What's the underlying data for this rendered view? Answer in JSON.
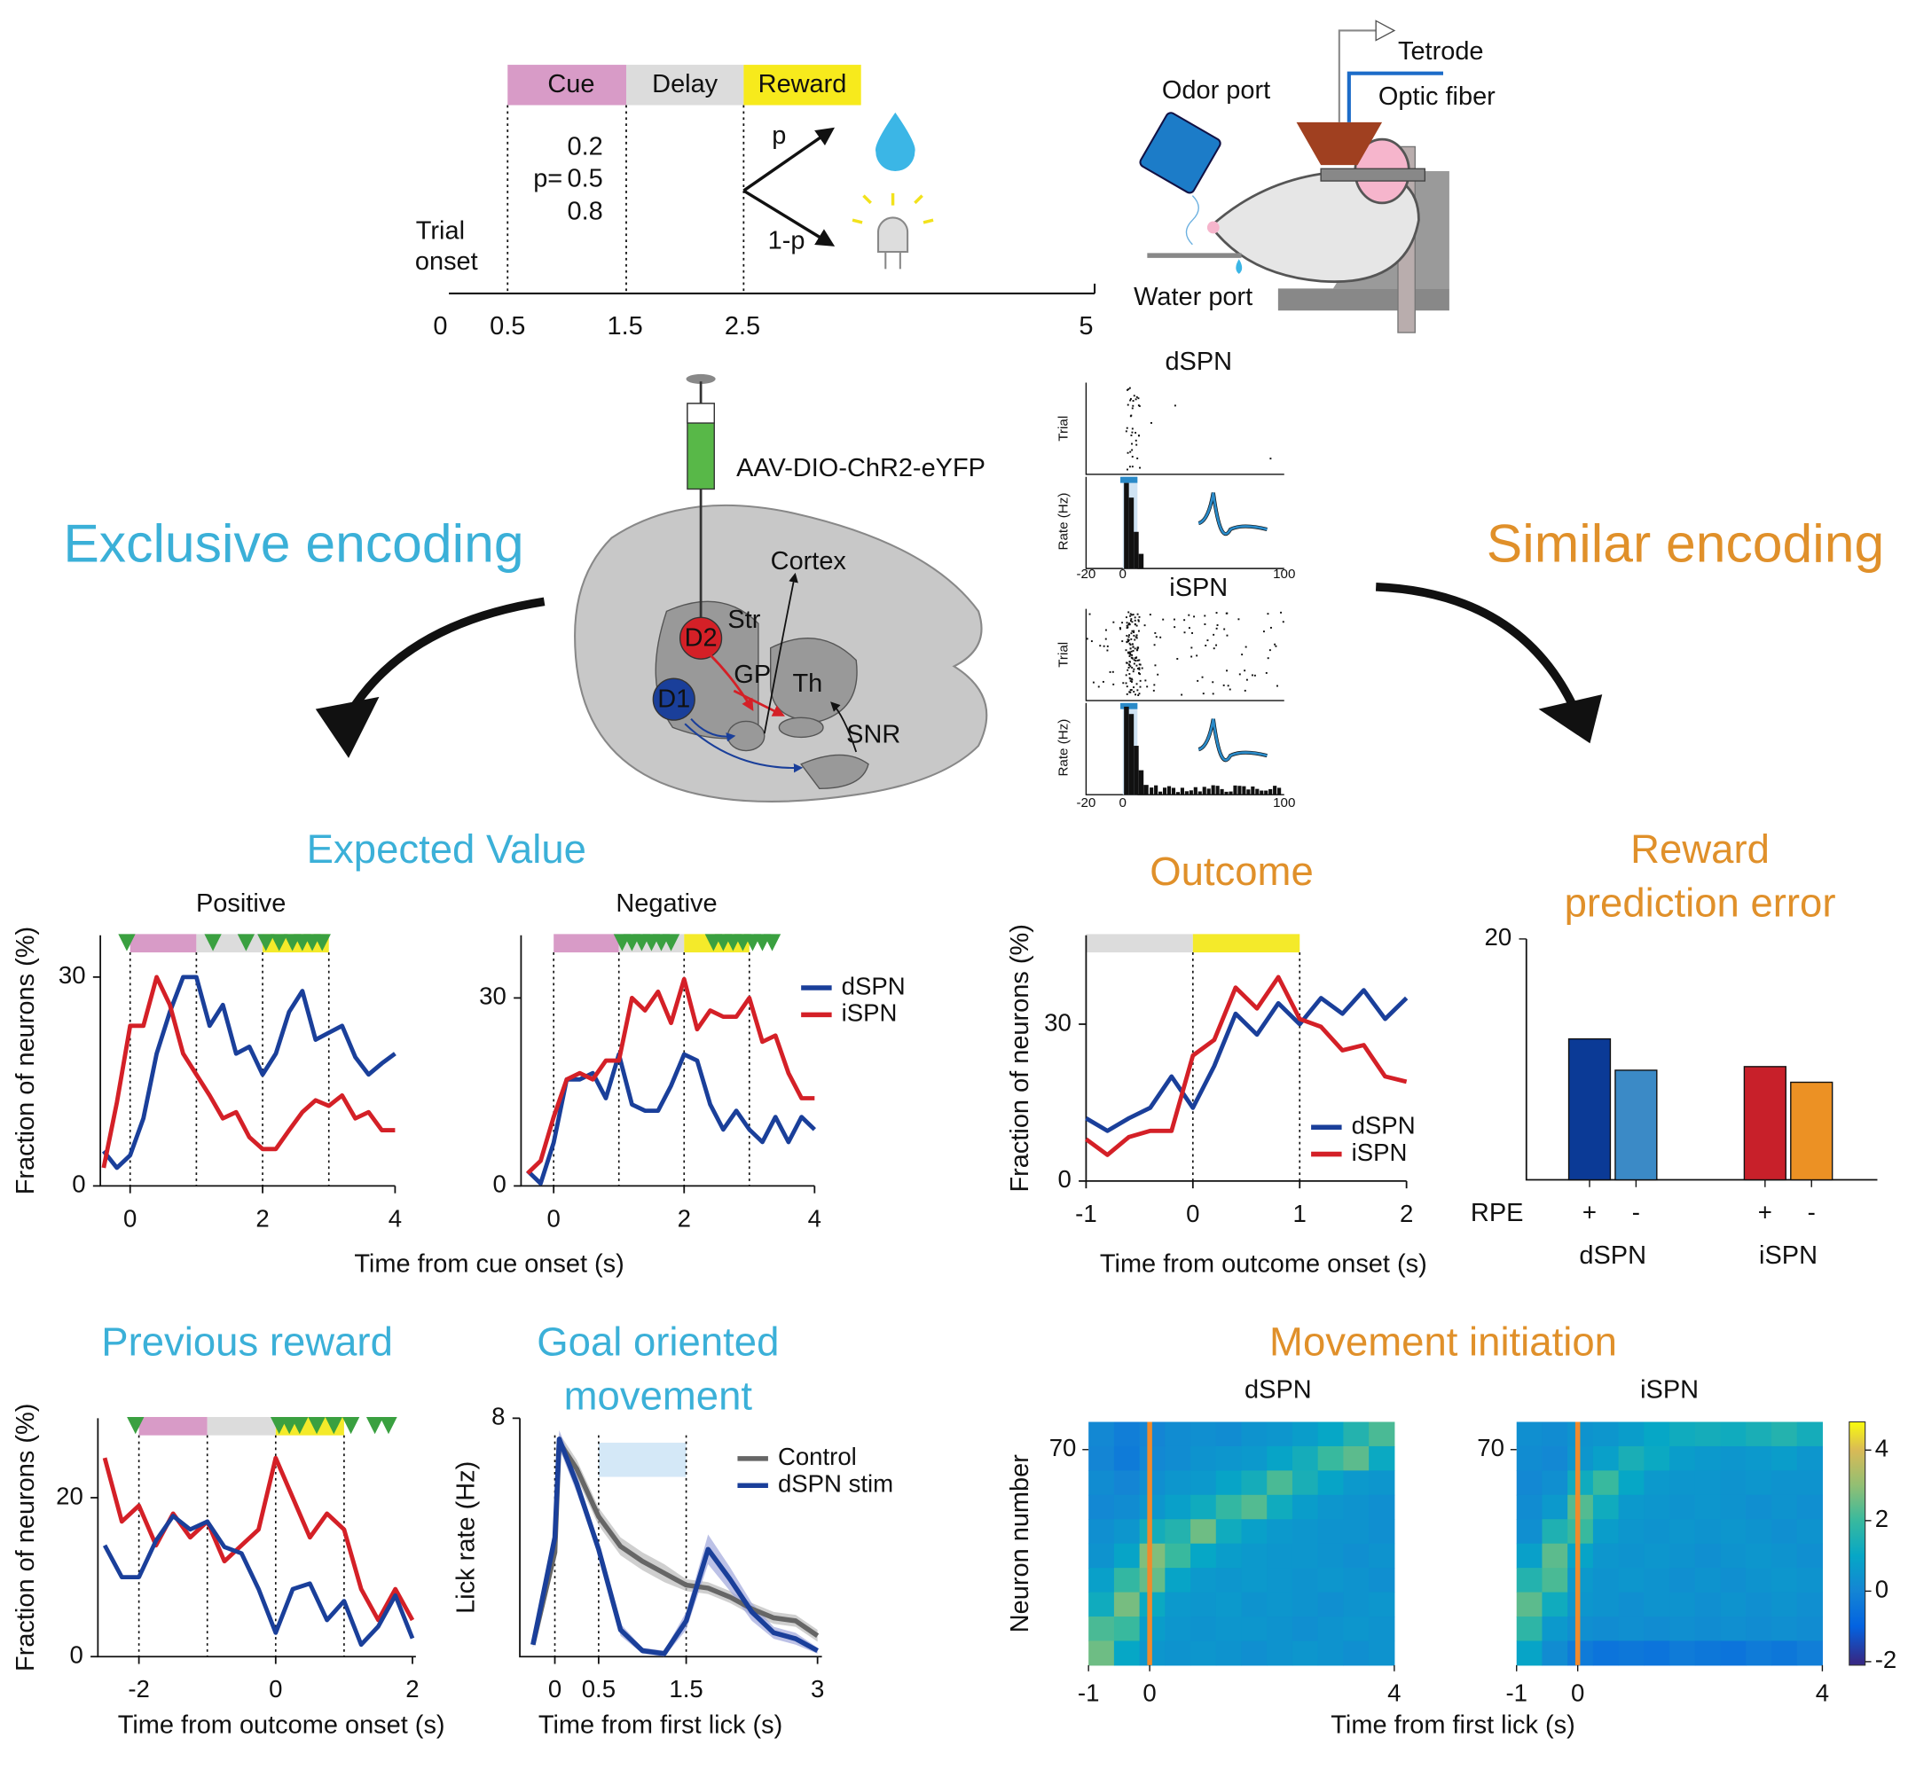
{
  "task": {
    "epochs": [
      "Cue",
      "Delay",
      "Reward"
    ],
    "probabilities_label": "p=",
    "probabilities": [
      0.2,
      0.5,
      0.8
    ],
    "start_label": [
      "Trial",
      "onset"
    ],
    "ticks": [
      0,
      0.5,
      1.5,
      2.5,
      5
    ],
    "branches": [
      "p",
      "1-p"
    ]
  },
  "rig": {
    "labels": [
      "Odor port",
      "Tetrode",
      "Optic fiber",
      "Water port"
    ]
  },
  "brain": {
    "virus": "AAV-DIO-ChR2-eYFP",
    "regions": [
      "Cortex",
      "Str",
      "D2",
      "GP",
      "Th",
      "D1",
      "SNR"
    ]
  },
  "units": [
    {
      "title": "dSPN",
      "y_labels": [
        "Trial",
        "Rate (Hz)"
      ],
      "x_ticks": [
        -20,
        0,
        100
      ]
    },
    {
      "title": "iSPN",
      "y_labels": [
        "Trial",
        "Rate (Hz)"
      ],
      "x_ticks": [
        -20,
        0,
        100
      ]
    }
  ],
  "themes": {
    "left": "Exclusive encoding",
    "right": "Similar encoding"
  },
  "panels": {
    "expected_value": {
      "title": "Expected Value",
      "xlabel": "Time from cue onset (s)"
    },
    "movement_initiation": {
      "title": "Movement initiation",
      "xlabel": "Time from first lick (s)"
    }
  },
  "chart_data": [
    {
      "type": "line",
      "title": "Positive",
      "ylabel": "Fraction of neurons (%)",
      "x": [
        -0.4,
        -0.2,
        0,
        0.2,
        0.4,
        0.6,
        0.8,
        1,
        1.2,
        1.4,
        1.6,
        1.8,
        2,
        2.2,
        2.4,
        2.6,
        2.8,
        3,
        3.2,
        3.4,
        3.6,
        3.8,
        4
      ],
      "series": [
        {
          "color": "#1a3f9a",
          "values": [
            5,
            2.6,
            4.4,
            9.7,
            19,
            25,
            30,
            30,
            23,
            26,
            19,
            20,
            16,
            19,
            25,
            28,
            21,
            22,
            23,
            18.5,
            16,
            17.6,
            19
          ]
        },
        {
          "color": "#d42027",
          "values": [
            2.6,
            12,
            23,
            23,
            30,
            26,
            19,
            16,
            13,
            9.7,
            10.6,
            7,
            5.3,
            5.3,
            8,
            10.6,
            12.3,
            11.5,
            13,
            9.7,
            10.6,
            8,
            8
          ]
        }
      ],
      "bands": [
        {
          "start": 0,
          "end": 1,
          "color": "#d89bc7"
        },
        {
          "start": 1,
          "end": 2,
          "color": "#dcdcdc"
        },
        {
          "start": 2,
          "end": 3,
          "color": "#f4ea2a"
        }
      ],
      "significance": [
        -0.05,
        1.25,
        1.75,
        2.05,
        2.25,
        2.45,
        2.6,
        2.75,
        2.9
      ],
      "vlines": [
        0,
        1,
        2,
        3
      ],
      "xlim": [
        -0.45,
        4
      ],
      "ylim": [
        0,
        36
      ],
      "xticks": [
        0,
        2,
        4
      ],
      "yticks": [
        0,
        30
      ]
    },
    {
      "type": "line",
      "title": "Negative",
      "x": [
        -0.4,
        -0.2,
        0,
        0.2,
        0.4,
        0.6,
        0.8,
        1,
        1.2,
        1.4,
        1.6,
        1.8,
        2,
        2.2,
        2.4,
        2.6,
        2.8,
        3,
        3.2,
        3.4,
        3.6,
        3.8,
        4
      ],
      "series": [
        {
          "name": "dSPN",
          "color": "#1a3f9a",
          "values": [
            2.4,
            0.4,
            6.9,
            17,
            17,
            18,
            14,
            21,
            13,
            12,
            12,
            16,
            21,
            20,
            13,
            9,
            12,
            9,
            7,
            11,
            7,
            11,
            9
          ]
        },
        {
          "name": "iSPN",
          "color": "#d42027",
          "values": [
            2,
            4,
            11,
            17,
            18,
            17,
            20,
            20,
            30,
            28,
            31,
            26,
            33,
            25,
            28,
            27,
            27,
            30,
            23,
            24,
            18,
            14,
            14
          ]
        }
      ],
      "bands": [
        {
          "start": 0,
          "end": 1,
          "color": "#d89bc7"
        },
        {
          "start": 1,
          "end": 2,
          "color": "#dcdcdc"
        },
        {
          "start": 2,
          "end": 3,
          "color": "#f4ea2a"
        }
      ],
      "significance": [
        1.05,
        1.2,
        1.35,
        1.5,
        1.65,
        1.8,
        2.45,
        2.6,
        2.75,
        2.9,
        3.05,
        3.2,
        3.35
      ],
      "vlines": [
        0,
        1,
        2,
        3
      ],
      "legend": "upper right",
      "xlim": [
        -0.5,
        4
      ],
      "ylim": [
        0,
        40
      ],
      "xticks": [
        0,
        2,
        4
      ],
      "yticks": [
        0,
        30
      ]
    },
    {
      "type": "line",
      "title": "Outcome",
      "ylabel": "Fraction of neurons (%)",
      "xlabel": "Time from outcome onset (s)",
      "x": [
        -1,
        -0.8,
        -0.6,
        -0.4,
        -0.2,
        0,
        0.2,
        0.4,
        0.6,
        0.8,
        1,
        1.2,
        1.4,
        1.6,
        1.8,
        2
      ],
      "series": [
        {
          "name": "dSPN",
          "color": "#1a3f9a",
          "values": [
            12,
            9.6,
            12,
            14,
            20,
            14,
            22,
            32,
            28,
            34,
            30,
            35,
            32,
            36.5,
            31,
            35
          ]
        },
        {
          "name": "iSPN",
          "color": "#d42027",
          "values": [
            8,
            5,
            8.4,
            9.6,
            9.6,
            24,
            27,
            37,
            33,
            39,
            31,
            29.5,
            25,
            26,
            20,
            19
          ]
        }
      ],
      "bands": [
        {
          "start": -1,
          "end": 0,
          "color": "#dcdcdc"
        },
        {
          "start": 0,
          "end": 1,
          "color": "#f4ea2a"
        }
      ],
      "vlines": [
        0,
        1
      ],
      "legend": "lower right",
      "xlim": [
        -1,
        2
      ],
      "ylim": [
        0,
        47
      ],
      "xticks": [
        -1,
        0,
        1,
        2
      ],
      "yticks": [
        0,
        30
      ]
    },
    {
      "type": "bar",
      "title_lines": [
        "Reward",
        "prediction error"
      ],
      "axis_label": "RPE",
      "categories": [
        "+",
        "-",
        "+",
        "-"
      ],
      "groups": [
        "dSPN",
        "iSPN"
      ],
      "values": [
        11.7,
        9.1,
        9.4,
        8.1
      ],
      "colors": [
        "#0b3a96",
        "#3b8ac6",
        "#c8202a",
        "#ec9124"
      ],
      "ylim": [
        0,
        20
      ],
      "yticks": [
        20
      ]
    },
    {
      "type": "line",
      "title": "Previous reward",
      "ylabel": "Fraction of neurons (%)",
      "xlabel": "Time from outcome onset (s)",
      "x": [
        -2.5,
        -2.25,
        -2,
        -1.75,
        -1.5,
        -1.25,
        -1,
        -0.75,
        -0.5,
        -0.25,
        0,
        0.25,
        0.5,
        0.75,
        1,
        1.25,
        1.5,
        1.75,
        2
      ],
      "series": [
        {
          "color": "#d42027",
          "values": [
            25,
            17,
            19,
            14,
            18,
            15,
            17,
            12,
            14,
            16,
            25,
            20,
            15,
            18,
            16,
            8.5,
            4.6,
            8.5,
            4.6
          ]
        },
        {
          "color": "#1a3f9a",
          "values": [
            14,
            10,
            10,
            14.6,
            17.7,
            16,
            17,
            13.8,
            13,
            8.5,
            3,
            8.5,
            9.2,
            4.6,
            7,
            1.5,
            3.8,
            7.7,
            2.3
          ]
        }
      ],
      "bands": [
        {
          "start": -2,
          "end": -1,
          "color": "#d89bc7"
        },
        {
          "start": -1,
          "end": 0,
          "color": "#dcdcdc"
        },
        {
          "start": 0,
          "end": 1,
          "color": "#f4ea2a"
        }
      ],
      "significance": [
        -2.05,
        0.05,
        0.2,
        0.35,
        0.6,
        0.85,
        1.1,
        1.45,
        1.65
      ],
      "vlines": [
        -2,
        -1,
        0,
        1
      ],
      "xlim": [
        -2.6,
        2.05
      ],
      "ylim": [
        0,
        30
      ],
      "xticks": [
        -2,
        0,
        2
      ],
      "yticks": [
        0,
        20
      ]
    },
    {
      "type": "line",
      "title_lines": [
        "Goal oriented",
        "movement"
      ],
      "ylabel": "Lick rate (Hz)",
      "xlabel": "Time from first lick (s)",
      "x": [
        -0.25,
        0,
        0.05,
        0.25,
        0.5,
        0.75,
        1,
        1.25,
        1.5,
        1.75,
        2,
        2.25,
        2.5,
        2.75,
        3
      ],
      "series": [
        {
          "name": "Control",
          "color": "#666666",
          "band_color": "#bbbbbb",
          "values": [
            0.4,
            3.5,
            7.2,
            6.3,
            4.7,
            3.7,
            3.2,
            2.8,
            2.4,
            2.3,
            2.0,
            1.6,
            1.3,
            1.2,
            0.7
          ],
          "errors": [
            0.1,
            0.2,
            0.3,
            0.3,
            0.3,
            0.3,
            0.3,
            0.3,
            0.2,
            0.2,
            0.2,
            0.2,
            0.2,
            0.2,
            0.2
          ]
        },
        {
          "name": "dSPN stim",
          "color": "#1a3f9a",
          "band_color": "#9fa6dc",
          "values": [
            0.4,
            4.0,
            7.3,
            5.8,
            3.6,
            0.9,
            0.2,
            0.1,
            1.2,
            3.6,
            2.6,
            1.5,
            0.8,
            0.6,
            0.2
          ],
          "errors": [
            0.1,
            0.2,
            0.3,
            0.3,
            0.2,
            0.2,
            0.1,
            0.1,
            0.3,
            0.5,
            0.4,
            0.3,
            0.2,
            0.2,
            0.1
          ]
        }
      ],
      "bands": [
        {
          "start": 0.5,
          "end": 1.5,
          "color": "#d4e8f7"
        }
      ],
      "vlines": [
        0,
        0.5,
        1.5
      ],
      "legend": "upper right",
      "xlim": [
        -0.4,
        3.05
      ],
      "ylim": [
        0,
        8
      ],
      "xticks": [
        0,
        0.5,
        1.5,
        3
      ],
      "yticks": [
        8
      ]
    },
    {
      "type": "heatmap",
      "title": "dSPN",
      "ylabel": "Neuron number",
      "marker_x": 0,
      "marker_color": "#f08a2c",
      "xlim": [
        -1,
        4
      ],
      "ylim": [
        0,
        79
      ],
      "xticks": [
        -1,
        0,
        4
      ],
      "yticks": [
        70
      ],
      "z": [
        [
          0.1,
          -0.2,
          0.0,
          0.2,
          0.3,
          0.2,
          0.4,
          0.5,
          0.7,
          1.0,
          1.6,
          2.2
        ],
        [
          0.0,
          -0.3,
          0.1,
          0.2,
          0.4,
          0.5,
          0.6,
          0.9,
          1.3,
          2.0,
          2.4,
          1.1
        ],
        [
          0.2,
          0.0,
          0.3,
          0.5,
          0.6,
          0.9,
          1.3,
          2.2,
          1.4,
          0.9,
          0.6,
          0.5
        ],
        [
          0.1,
          0.2,
          0.5,
          0.8,
          1.2,
          1.9,
          2.3,
          1.2,
          0.7,
          0.5,
          0.4,
          0.3
        ],
        [
          0.3,
          0.5,
          1.3,
          1.6,
          2.6,
          1.2,
          0.8,
          0.6,
          0.5,
          0.4,
          0.4,
          0.3
        ],
        [
          0.4,
          0.9,
          2.8,
          2.0,
          1.0,
          0.7,
          0.6,
          0.5,
          0.5,
          0.4,
          0.3,
          0.4
        ],
        [
          0.8,
          1.9,
          2.5,
          0.9,
          0.6,
          0.5,
          0.6,
          0.5,
          0.4,
          0.5,
          0.4,
          0.3
        ],
        [
          1.2,
          2.7,
          1.1,
          0.6,
          0.5,
          0.6,
          0.4,
          0.5,
          0.4,
          0.3,
          0.4,
          0.5
        ],
        [
          2.2,
          2.0,
          0.7,
          0.5,
          0.4,
          0.5,
          0.5,
          0.4,
          0.3,
          0.4,
          0.5,
          0.4
        ],
        [
          2.6,
          1.0,
          0.5,
          0.4,
          0.5,
          0.4,
          0.3,
          0.4,
          0.5,
          0.4,
          0.3,
          0.4
        ]
      ],
      "clim": [
        -2.1,
        4.8
      ]
    },
    {
      "type": "heatmap",
      "title": "iSPN",
      "marker_x": 0,
      "marker_color": "#f08a2c",
      "xlim": [
        -1,
        4
      ],
      "ylim": [
        0,
        79
      ],
      "xticks": [
        -1,
        0,
        4
      ],
      "yticks": [
        70
      ],
      "z": [
        [
          0.3,
          0.2,
          0.4,
          0.5,
          0.7,
          1.0,
          1.2,
          1.3,
          1.2,
          1.4,
          1.6,
          1.3
        ],
        [
          0.2,
          0.1,
          0.5,
          0.8,
          1.4,
          1.1,
          0.7,
          0.6,
          0.5,
          0.6,
          0.7,
          0.5
        ],
        [
          0.1,
          0.3,
          1.2,
          2.0,
          1.0,
          0.6,
          0.5,
          0.5,
          0.4,
          0.5,
          0.4,
          0.4
        ],
        [
          0.2,
          0.6,
          2.3,
          1.2,
          0.6,
          0.5,
          0.4,
          0.5,
          0.4,
          0.3,
          0.4,
          0.3
        ],
        [
          0.3,
          1.5,
          2.0,
          0.7,
          0.5,
          0.4,
          0.5,
          0.4,
          0.5,
          0.4,
          0.3,
          0.4
        ],
        [
          0.8,
          2.4,
          0.9,
          0.5,
          0.4,
          0.5,
          0.4,
          0.3,
          0.4,
          0.5,
          0.4,
          0.3
        ],
        [
          1.6,
          2.2,
          0.6,
          0.4,
          0.5,
          0.4,
          0.3,
          0.4,
          0.3,
          0.4,
          0.5,
          0.4
        ],
        [
          2.4,
          1.2,
          0.5,
          0.4,
          0.3,
          0.4,
          0.4,
          0.3,
          0.4,
          0.3,
          0.4,
          0.3
        ],
        [
          1.8,
          0.6,
          0.3,
          0.2,
          0.3,
          0.2,
          0.3,
          0.2,
          0.3,
          0.2,
          0.3,
          0.2
        ],
        [
          0.9,
          0.2,
          -0.3,
          -0.5,
          -0.4,
          -0.5,
          -0.3,
          -0.4,
          -0.5,
          -0.3,
          -0.4,
          -0.2
        ]
      ],
      "clim": [
        -2.1,
        4.8
      ],
      "cticks": [
        -2,
        0,
        2,
        4
      ]
    }
  ]
}
